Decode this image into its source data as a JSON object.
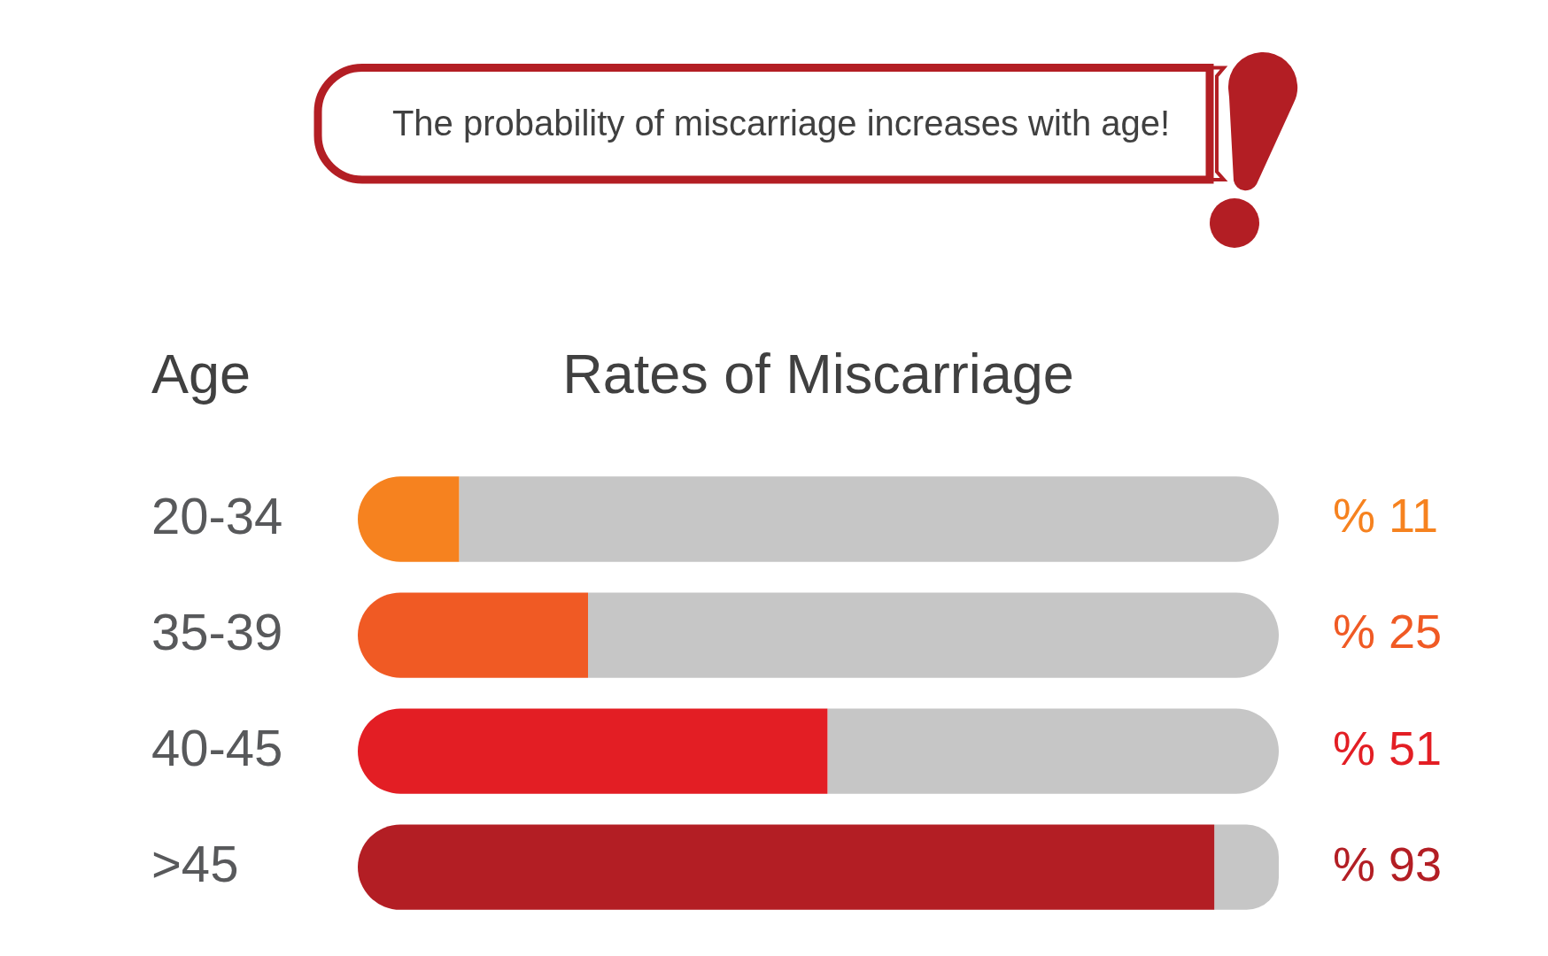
{
  "chart_data": {
    "type": "bar",
    "orientation": "horizontal",
    "stacked": true,
    "title": "Rates of Miscarriage",
    "ylabel": "Age",
    "annotations": [
      "The probability of miscarriage increases with age!"
    ],
    "categories": [
      "20-34",
      "35-39",
      "40-45",
      ">45"
    ],
    "series": [
      {
        "colors": [
          "#f6821f",
          "#f05a24",
          "#e31e24",
          "#b31e24"
        ],
        "values": [
          11,
          25,
          51,
          93
        ],
        "value_labels": [
          "% 11",
          "% 25",
          "% 51",
          "% 93"
        ]
      },
      {
        "color": "#c6c6c6",
        "values": [
          89,
          75,
          49,
          7
        ]
      }
    ],
    "xlim": [
      0,
      100
    ],
    "tick_labels": "y"
  }
}
